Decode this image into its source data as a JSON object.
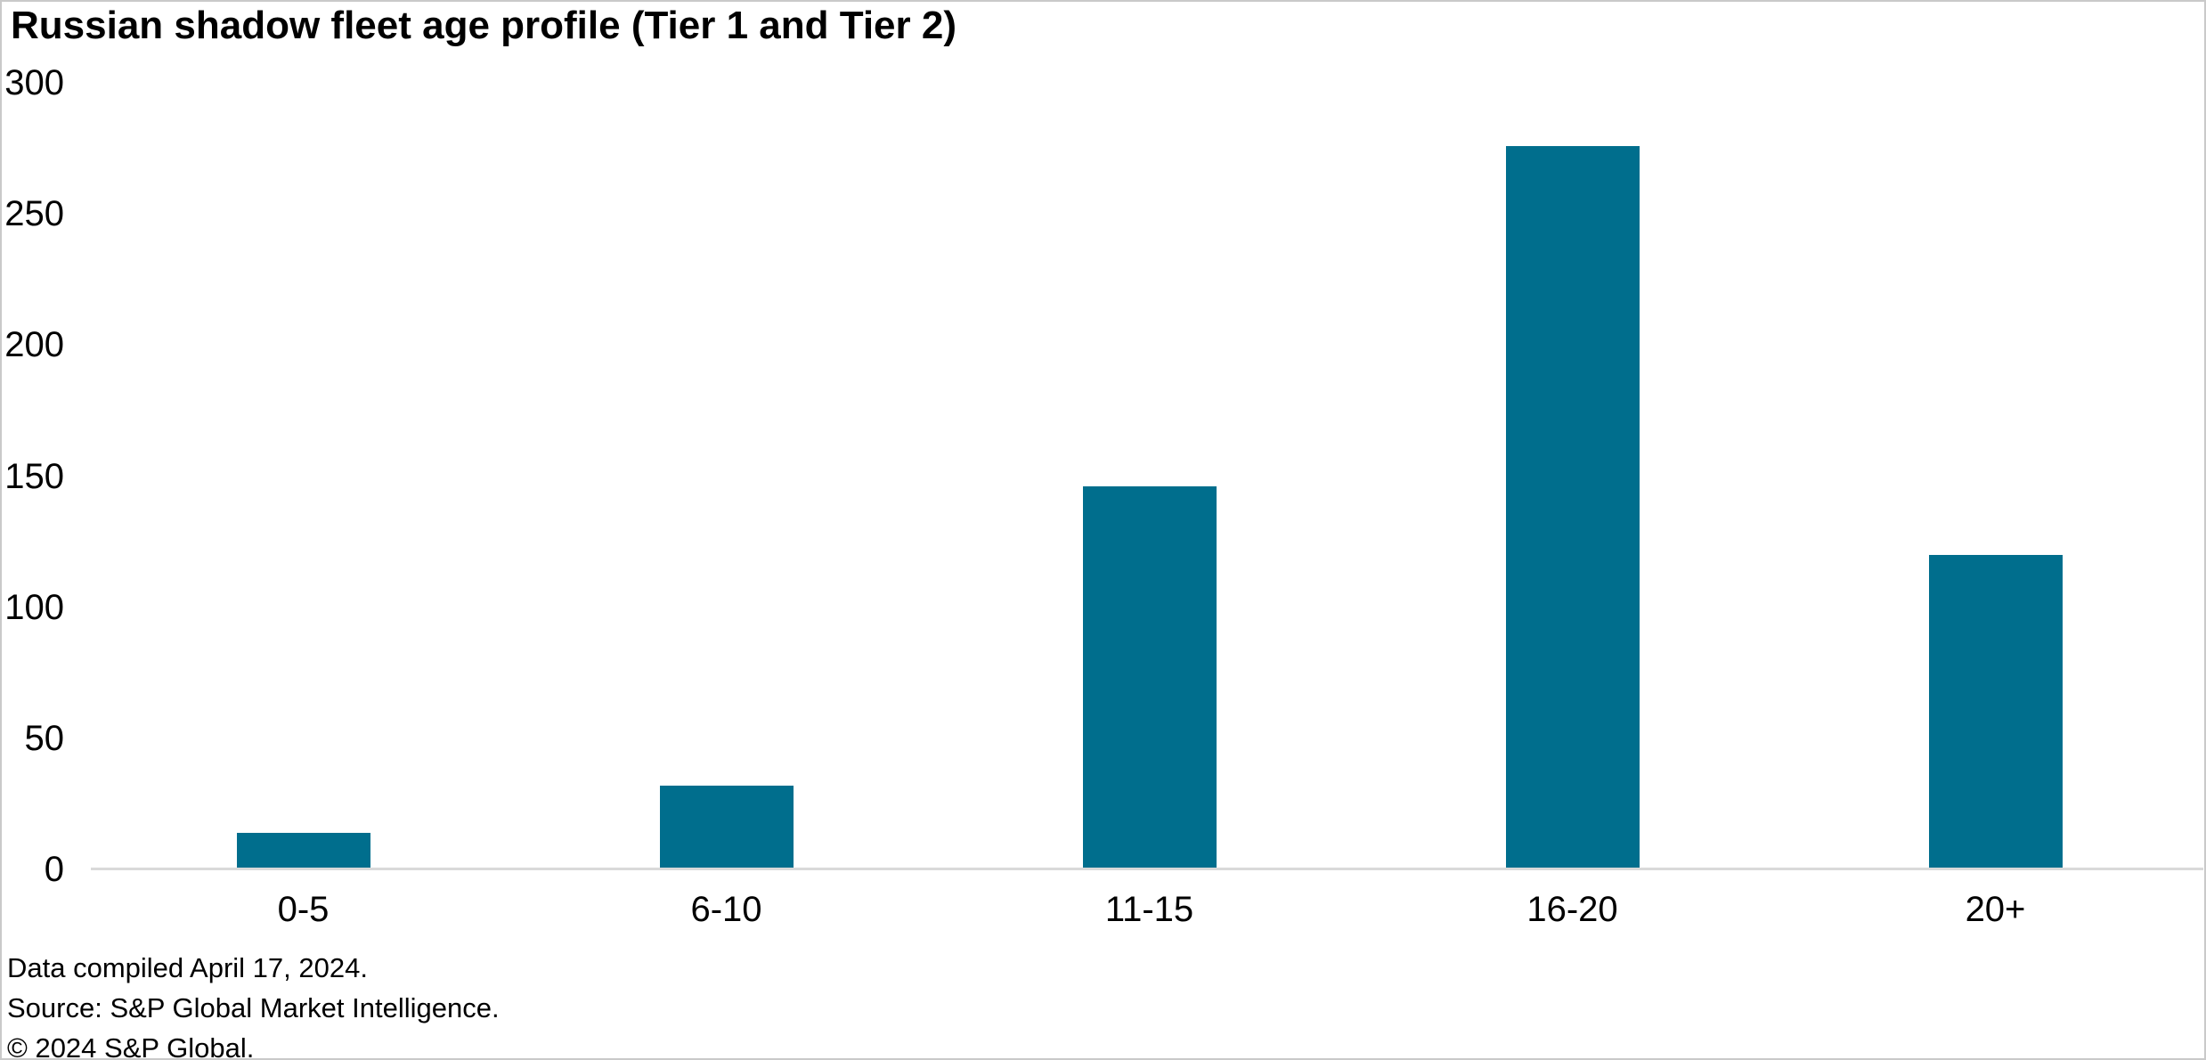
{
  "title": "Russian shadow fleet age profile (Tier 1 and Tier 2)",
  "footer": {
    "line1": "Data compiled April 17, 2024.",
    "line2": "Source: S&P Global Market Intelligence.",
    "line3": "© 2024 S&P Global."
  },
  "colors": {
    "bar": "#006e8d",
    "axis_line": "#d9d9d9",
    "frame_border": "#c9c9c9",
    "text": "#000000",
    "background": "#ffffff"
  },
  "chart_data": {
    "type": "bar",
    "title": "Russian shadow fleet age profile (Tier 1 and Tier 2)",
    "categories": [
      "0-5",
      "6-10",
      "11-15",
      "16-20",
      "20+"
    ],
    "values": [
      14,
      32,
      146,
      276,
      120
    ],
    "xlabel": "",
    "ylabel": "",
    "ylim": [
      0,
      300
    ],
    "yticks": [
      0,
      50,
      100,
      150,
      200,
      250,
      300
    ],
    "grid": false,
    "legend_position": "none",
    "bar_color": "#006e8d"
  }
}
